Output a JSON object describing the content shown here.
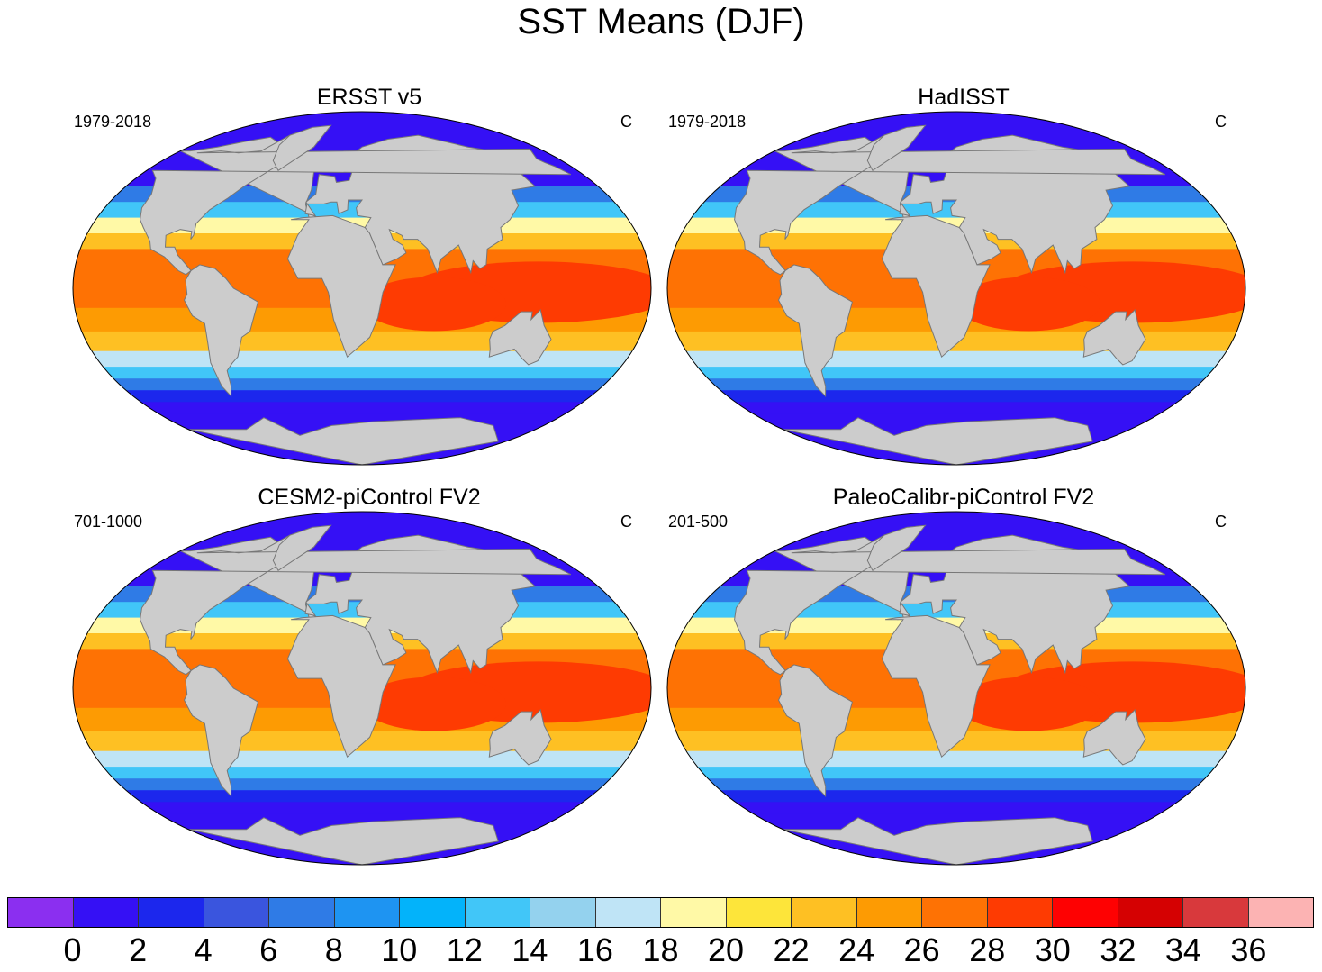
{
  "title": "SST Means (DJF)",
  "panels": [
    {
      "title": "ERSST v5",
      "period": "1979-2018",
      "units": "C",
      "variant": 0
    },
    {
      "title": "HadISST",
      "period": "1979-2018",
      "units": "C",
      "variant": 1
    },
    {
      "title": "CESM2-piControl FV2",
      "period": "701-1000",
      "units": "C",
      "variant": 2
    },
    {
      "title": "PaleoCalibr-piControl FV2",
      "period": "201-500",
      "units": "C",
      "variant": 3
    }
  ],
  "colorbar": {
    "colors": [
      "#8b2ff0",
      "#3510f5",
      "#1c27ed",
      "#3a55de",
      "#2f7be6",
      "#1e94f2",
      "#03b3fa",
      "#41c6f8",
      "#94d2ee",
      "#bfe4f6",
      "#fff9a6",
      "#fde53a",
      "#fec023",
      "#fd9b03",
      "#fe7204",
      "#fe3b02",
      "#fe0102",
      "#d50102",
      "#d8393c",
      "#fcb3b3"
    ],
    "labels": [
      "0",
      "2",
      "4",
      "6",
      "8",
      "10",
      "12",
      "14",
      "16",
      "18",
      "20",
      "22",
      "24",
      "26",
      "28",
      "30",
      "32",
      "34",
      "36"
    ]
  },
  "map": {
    "ocean_bands": [
      {
        "lat": 90,
        "sst": 0
      },
      {
        "lat": 62,
        "sst": 0
      },
      {
        "lat": 52,
        "sst": 3
      },
      {
        "lat": 44,
        "sst": 9
      },
      {
        "lat": 36,
        "sst": 15
      },
      {
        "lat": 28,
        "sst": 21
      },
      {
        "lat": 20,
        "sst": 25
      },
      {
        "lat": 10,
        "sst": 27
      },
      {
        "lat": 0,
        "sst": 28
      },
      {
        "lat": -10,
        "sst": 27
      },
      {
        "lat": -22,
        "sst": 24
      },
      {
        "lat": -32,
        "sst": 20
      },
      {
        "lat": -40,
        "sst": 15
      },
      {
        "lat": -46,
        "sst": 10
      },
      {
        "lat": -52,
        "sst": 5
      },
      {
        "lat": -58,
        "sst": 2
      },
      {
        "lat": -64,
        "sst": 0
      },
      {
        "lat": -90,
        "sst": 0
      }
    ],
    "warm_pool_sst": 29,
    "land_color": "#cccccc",
    "coast_color": "#777777",
    "ice_color": "#ffffff"
  }
}
